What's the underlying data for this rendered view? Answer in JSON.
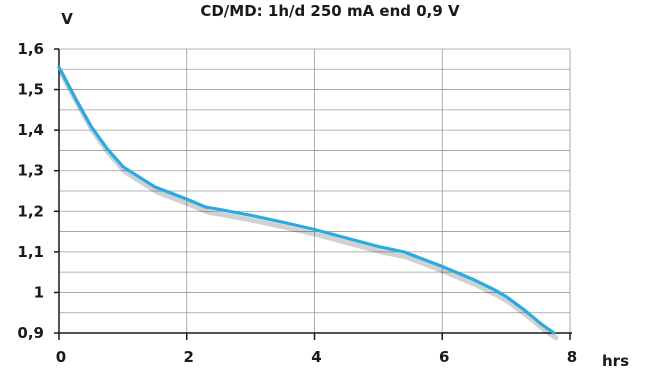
{
  "chart_data": {
    "type": "line",
    "title": "CD/MD: 1h/d 250 mA end 0,9 V",
    "ylabel": "V",
    "xlabel": "hrs",
    "xlim": [
      0,
      8
    ],
    "ylim": [
      0.9,
      1.6
    ],
    "x_ticks": [
      "0",
      "2",
      "4",
      "6",
      "8"
    ],
    "x_tick_values": [
      0,
      2,
      4,
      6,
      8
    ],
    "y_ticks": [
      "0,9",
      "1",
      "1,1",
      "1,2",
      "1,3",
      "1,4",
      "1,5",
      "1,6"
    ],
    "y_tick_values": [
      0.9,
      1.0,
      1.1,
      1.2,
      1.3,
      1.4,
      1.5,
      1.6
    ],
    "y_minor_step": 0.05,
    "grid": true,
    "series": [
      {
        "color": "#29abe2",
        "x": [
          0,
          0.25,
          0.5,
          0.75,
          1.0,
          1.25,
          1.5,
          1.75,
          2.0,
          2.3,
          2.5,
          3.0,
          3.5,
          4.0,
          4.5,
          5.0,
          5.4,
          5.6,
          6.0,
          6.5,
          6.8,
          7.0,
          7.3,
          7.55,
          7.75
        ],
        "y": [
          1.555,
          1.48,
          1.41,
          1.355,
          1.31,
          1.285,
          1.26,
          1.245,
          1.23,
          1.21,
          1.205,
          1.19,
          1.173,
          1.155,
          1.134,
          1.113,
          1.1,
          1.088,
          1.064,
          1.031,
          1.008,
          0.99,
          0.955,
          0.922,
          0.9
        ]
      }
    ]
  }
}
